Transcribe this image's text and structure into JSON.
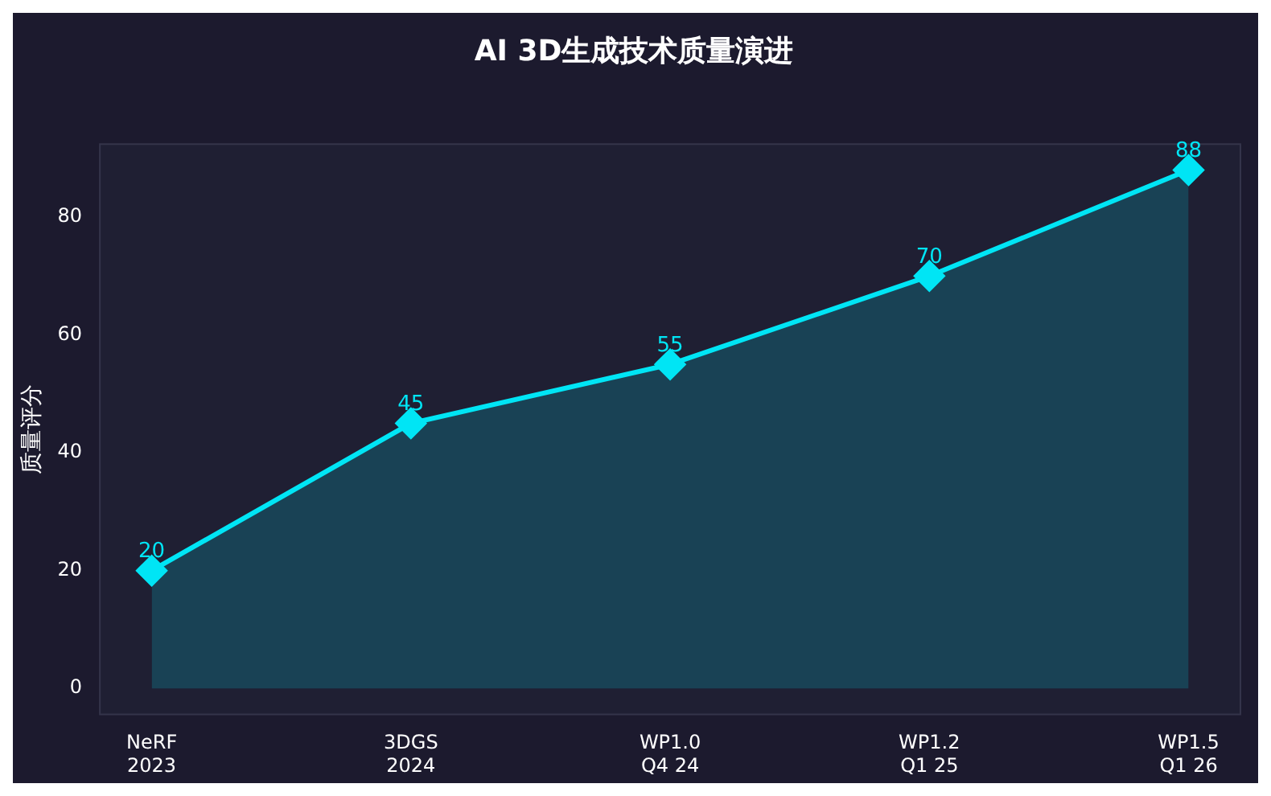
{
  "chart_data": {
    "type": "area",
    "title": "AI 3D生成技术质量演进",
    "ylabel": "质量评分",
    "categories": [
      "NeRF\n2023",
      "3DGS\n2024",
      "WP1.0\nQ4 24",
      "WP1.2\nQ1 25",
      "WP1.5\nQ1 26"
    ],
    "series": [
      {
        "color": "#00e5f5",
        "values": [
          20,
          45,
          55,
          70,
          88
        ]
      }
    ],
    "ylim": [
      -4.4,
      92.4
    ],
    "yticks": [
      0,
      20,
      40,
      60,
      80
    ],
    "marker": "diamond",
    "line_style": "solid",
    "data_labels": true,
    "grid": false,
    "legend": false
  }
}
